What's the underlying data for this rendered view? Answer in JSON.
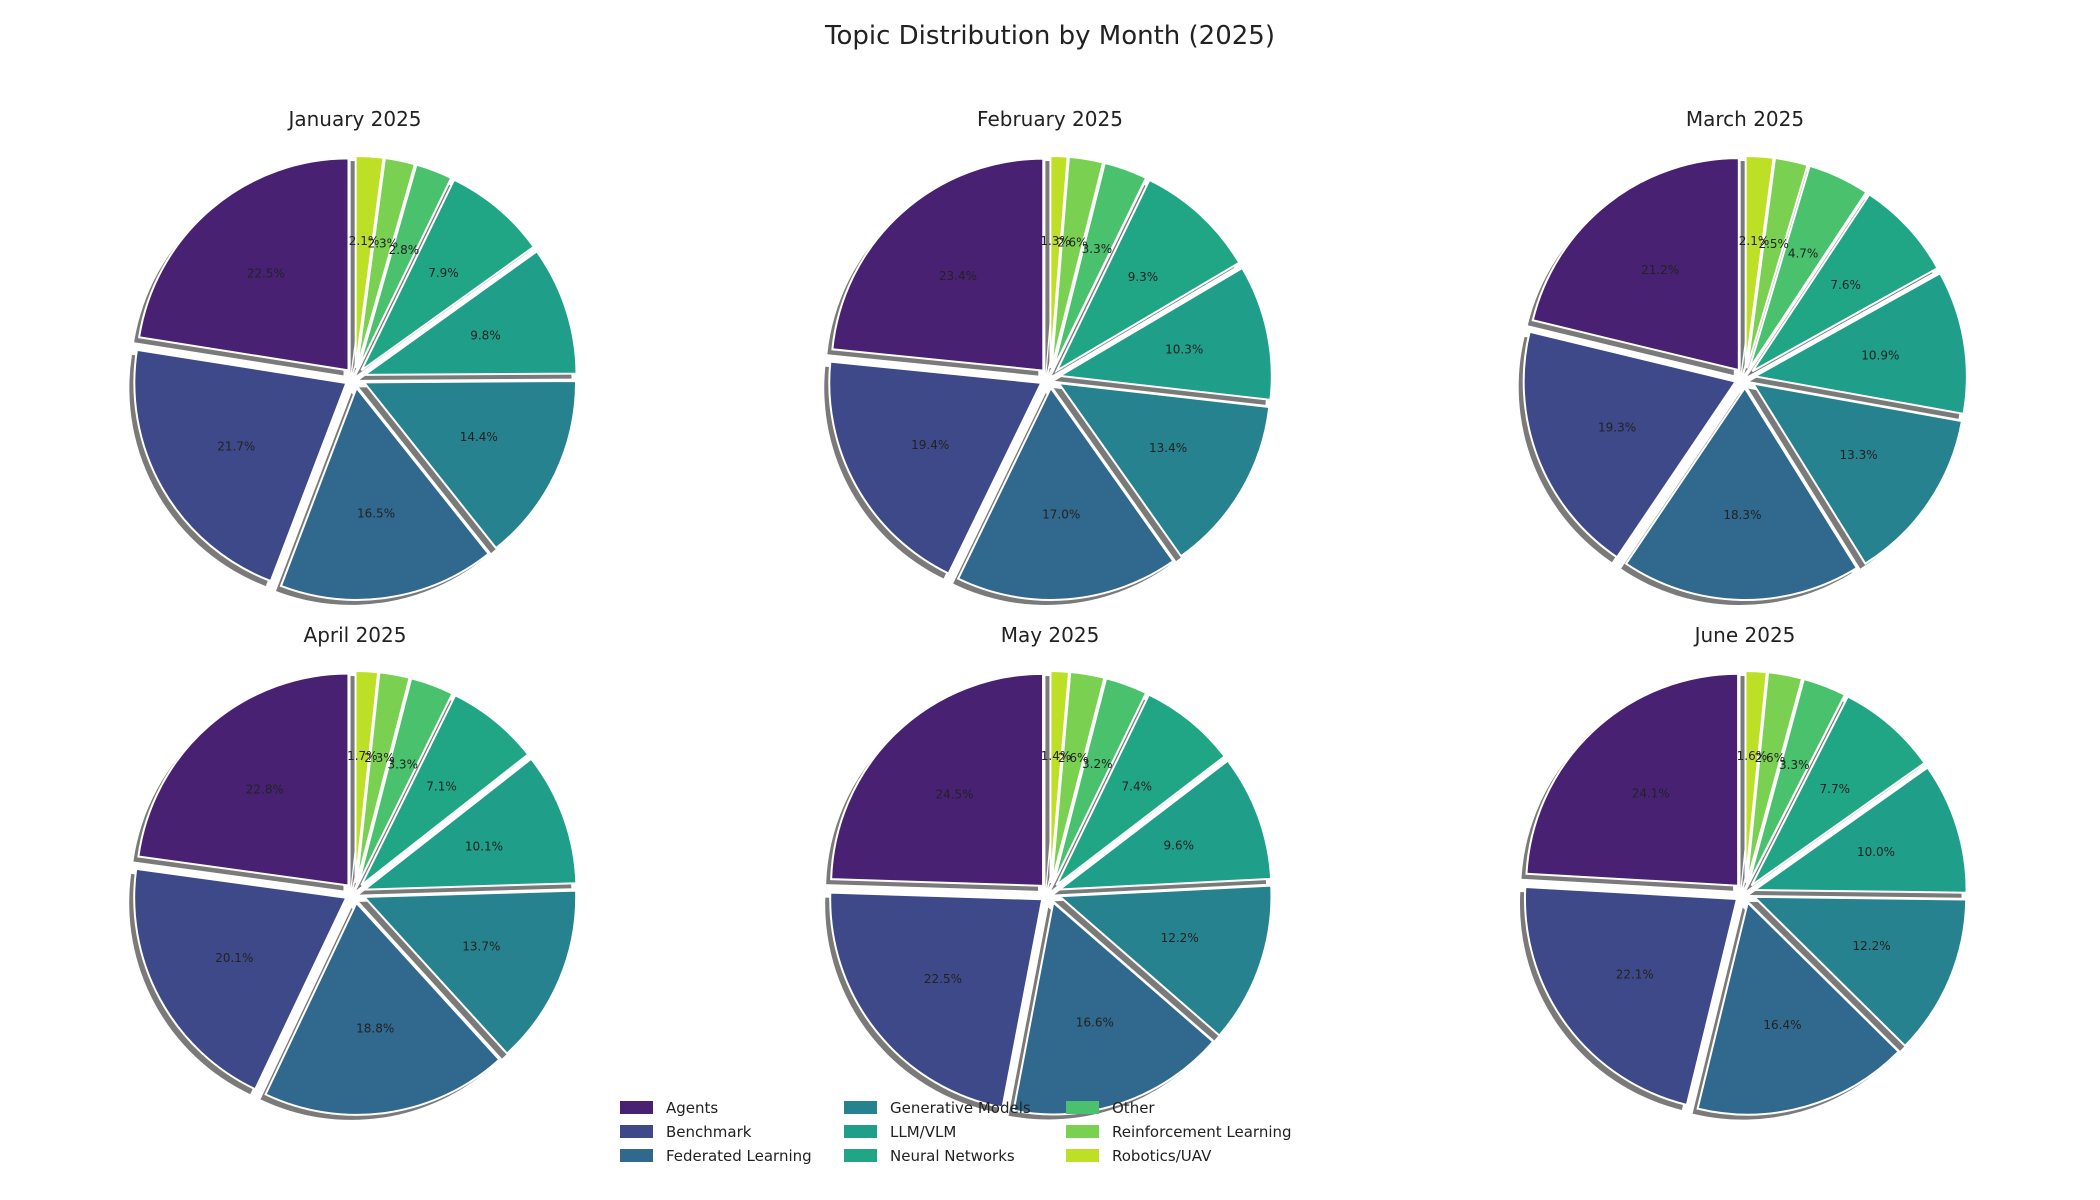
{
  "figure": {
    "title": "Topic Distribution by Month (2025)"
  },
  "legend": {
    "placement": "bottom-center",
    "entries": [
      {
        "label": "Agents",
        "color": "#482173"
      },
      {
        "label": "Benchmark",
        "color": "#3e4989"
      },
      {
        "label": "Federated Learning",
        "color": "#31688e"
      },
      {
        "label": "Generative Models",
        "color": "#26828e"
      },
      {
        "label": "LLM/VLM",
        "color": "#1f9e89"
      },
      {
        "label": "Neural Networks",
        "color": "#21a685"
      },
      {
        "label": "Other",
        "color": "#4ac16d"
      },
      {
        "label": "Reinforcement Learning",
        "color": "#7ad151"
      },
      {
        "label": "Robotics/UAV",
        "color": "#bddf26"
      }
    ]
  },
  "chart_data": [
    {
      "type": "pie",
      "title": "January 2025",
      "categories": [
        "Agents",
        "Benchmark",
        "Federated Learning",
        "Generative Models",
        "LLM/VLM",
        "Neural Networks",
        "Other",
        "Reinforcement Learning",
        "Robotics/UAV"
      ],
      "values": [
        22.5,
        21.7,
        16.5,
        14.4,
        9.8,
        7.9,
        2.8,
        2.3,
        2.1
      ],
      "labels": [
        "22.5%",
        "21.7%",
        "16.5%",
        "14.4%",
        "9.8%",
        "7.9%",
        "2.8%",
        "2.3%",
        "2.1%"
      ]
    },
    {
      "type": "pie",
      "title": "February 2025",
      "categories": [
        "Agents",
        "Benchmark",
        "Federated Learning",
        "Generative Models",
        "LLM/VLM",
        "Neural Networks",
        "Other",
        "Reinforcement Learning",
        "Robotics/UAV"
      ],
      "values": [
        23.4,
        19.4,
        17.0,
        13.4,
        10.3,
        9.3,
        3.3,
        2.6,
        1.3
      ],
      "labels": [
        "23.4%",
        "19.4%",
        "17.0%",
        "13.4%",
        "10.3%",
        "9.3%",
        "3.3%",
        "2.6%",
        "1.3%"
      ]
    },
    {
      "type": "pie",
      "title": "March 2025",
      "categories": [
        "Agents",
        "Benchmark",
        "Federated Learning",
        "Generative Models",
        "LLM/VLM",
        "Neural Networks",
        "Other",
        "Reinforcement Learning",
        "Robotics/UAV"
      ],
      "values": [
        21.2,
        19.3,
        18.3,
        13.3,
        10.9,
        7.6,
        4.7,
        2.5,
        2.1
      ],
      "labels": [
        "21.2%",
        "19.3%",
        "18.3%",
        "13.3%",
        "10.9%",
        "7.6%",
        "4.7%",
        "2.5%",
        "2.1%"
      ]
    },
    {
      "type": "pie",
      "title": "April 2025",
      "categories": [
        "Agents",
        "Benchmark",
        "Federated Learning",
        "Generative Models",
        "LLM/VLM",
        "Neural Networks",
        "Other",
        "Reinforcement Learning",
        "Robotics/UAV"
      ],
      "values": [
        22.8,
        20.1,
        18.8,
        13.7,
        10.1,
        7.1,
        3.3,
        2.3,
        1.7
      ],
      "labels": [
        "22.8%",
        "20.1%",
        "18.8%",
        "13.7%",
        "10.1%",
        "7.1%",
        "3.3%",
        "2.3%",
        "1.7%"
      ]
    },
    {
      "type": "pie",
      "title": "May 2025",
      "categories": [
        "Agents",
        "Benchmark",
        "Federated Learning",
        "Generative Models",
        "LLM/VLM",
        "Neural Networks",
        "Other",
        "Reinforcement Learning",
        "Robotics/UAV"
      ],
      "values": [
        24.5,
        22.5,
        16.6,
        12.2,
        9.6,
        7.4,
        3.2,
        2.6,
        1.4
      ],
      "labels": [
        "24.5%",
        "22.5%",
        "16.6%",
        "12.2%",
        "9.6%",
        "7.4%",
        "3.2%",
        "2.6%",
        "1.4%"
      ]
    },
    {
      "type": "pie",
      "title": "June 2025",
      "categories": [
        "Agents",
        "Benchmark",
        "Federated Learning",
        "Generative Models",
        "LLM/VLM",
        "Neural Networks",
        "Other",
        "Reinforcement Learning",
        "Robotics/UAV"
      ],
      "values": [
        24.1,
        22.1,
        16.4,
        12.2,
        10.0,
        7.7,
        3.3,
        2.6,
        1.6
      ],
      "labels": [
        "24.1%",
        "22.1%",
        "16.4%",
        "12.2%",
        "10.0%",
        "7.7%",
        "3.3%",
        "2.6%",
        "1.6%"
      ]
    }
  ]
}
